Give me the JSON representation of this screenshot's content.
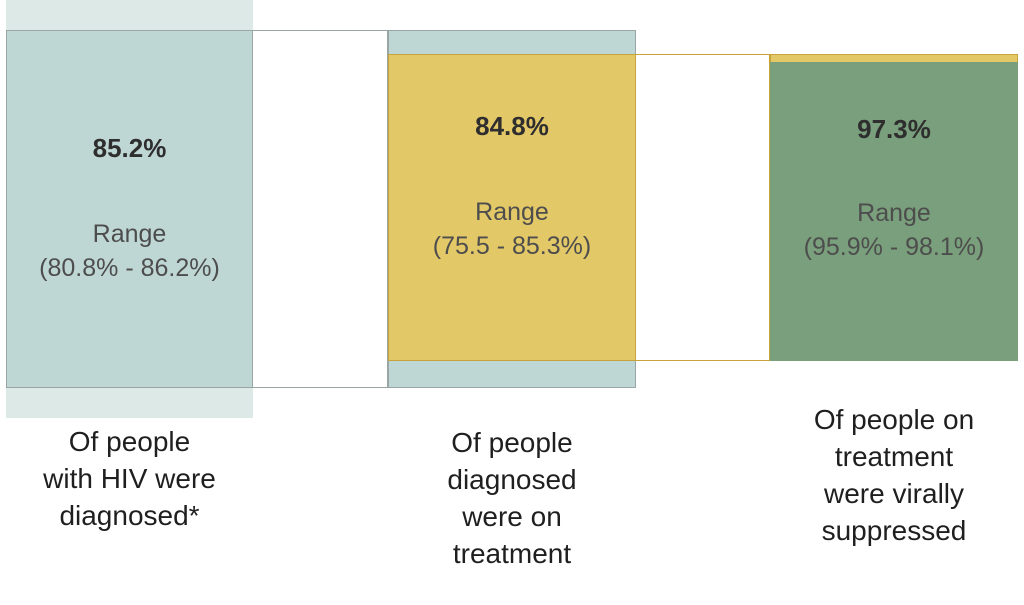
{
  "stages": [
    {
      "percent": "85.2%",
      "range_label": "Range",
      "range_value": "(80.8% - 86.2%)",
      "caption_lines": [
        "Of people",
        "with HIV were",
        "diagnosed*"
      ]
    },
    {
      "percent": "84.8%",
      "range_label": "Range",
      "range_value": "(75.5 - 85.3%)",
      "caption_lines": [
        "Of people",
        "diagnosed",
        "were on",
        "treatment"
      ]
    },
    {
      "percent": "97.3%",
      "range_label": "Range",
      "range_value": "(95.9% - 98.1%)",
      "caption_lines": [
        "Of people on",
        "treatment",
        "were virally",
        "suppressed"
      ]
    }
  ],
  "colors": {
    "diagnosed_fill": "#bfd7d4",
    "treatment_fill": "#e3c868",
    "suppressed_fill": "#7a9f7c",
    "shade": "#dce9e7"
  }
}
